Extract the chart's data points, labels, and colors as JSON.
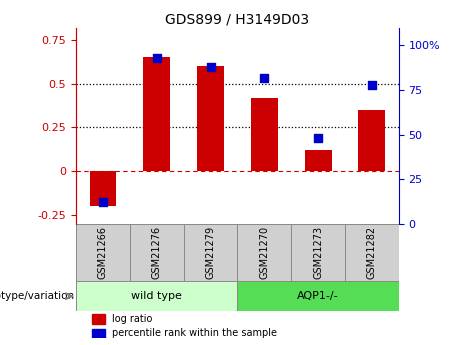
{
  "title": "GDS899 / H3149D03",
  "samples": [
    "GSM21266",
    "GSM21276",
    "GSM21279",
    "GSM21270",
    "GSM21273",
    "GSM21282"
  ],
  "log_ratio": [
    -0.2,
    0.65,
    0.6,
    0.42,
    0.12,
    0.35
  ],
  "percentile_rank": [
    12,
    93,
    88,
    82,
    48,
    78
  ],
  "bar_color": "#cc0000",
  "dot_color": "#0000cc",
  "ylim_left": [
    -0.3,
    0.82
  ],
  "ylim_right": [
    0,
    110
  ],
  "yticks_left": [
    -0.25,
    0.0,
    0.25,
    0.5,
    0.75
  ],
  "ytick_labels_left": [
    "-0.25",
    "0",
    "0.25",
    "0.5",
    "0.75"
  ],
  "yticks_right": [
    0,
    25,
    50,
    75,
    100
  ],
  "ytick_labels_right": [
    "0",
    "25",
    "50",
    "75",
    "100%"
  ],
  "hlines": [
    0.25,
    0.5
  ],
  "zero_line_y": 0.0,
  "groups": [
    {
      "label": "wild type",
      "indices": [
        0,
        1,
        2
      ],
      "color": "#ccffcc"
    },
    {
      "label": "AQP1-/-",
      "indices": [
        3,
        4,
        5
      ],
      "color": "#55dd55"
    }
  ],
  "group_label": "genotype/variation",
  "legend_items": [
    {
      "color": "#cc0000",
      "label": "log ratio"
    },
    {
      "color": "#0000cc",
      "label": "percentile rank within the sample"
    }
  ],
  "bar_width": 0.5,
  "sample_box_color": "#d0d0d0",
  "spine_color": "#888888"
}
